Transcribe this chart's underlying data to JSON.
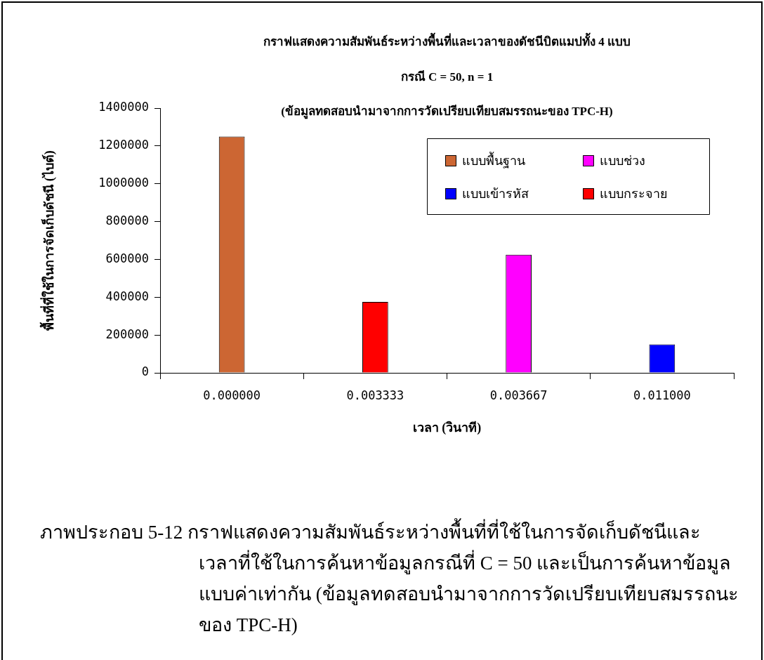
{
  "chart_data": {
    "type": "bar",
    "title": "กราฟแสดงความสัมพันธ์ระหว่างพื้นที่และเวลาของดัชนีบิตแมปทั้ง 4 แบบ",
    "subtitle": "กรณี C = 50, n = 1",
    "xlabel": "เวลา (วินาที)",
    "ylabel": "พื้นที่ที่ใช้ในการจัดเก็บดัชนี (ไบต์)",
    "categories": [
      "0.000000",
      "0.003333",
      "0.003667",
      "0.011000"
    ],
    "series": [
      {
        "name": "แบบพื้นฐาน",
        "color": "#cc6633",
        "values": [
          1250000,
          null,
          null,
          null
        ]
      },
      {
        "name": "แบบช่วง",
        "color": "#ff00ff",
        "values": [
          null,
          null,
          625000,
          null
        ]
      },
      {
        "name": "แบบเข้ารหัส",
        "color": "#0000ff",
        "values": [
          null,
          null,
          null,
          150000
        ]
      },
      {
        "name": "แบบกระจาย",
        "color": "#ff0000",
        "values": [
          null,
          375000,
          null,
          null
        ]
      }
    ],
    "ylim": [
      0,
      1400000
    ],
    "yticks": [
      0,
      200000,
      400000,
      600000,
      800000,
      1000000,
      1200000,
      1400000
    ],
    "grid": false,
    "legend": "top right",
    "annotations": [
      "(ข้อมูลทดสอบนำมาจากการวัดเปรียบเทียบสมรรถนะของ TPC-H)",
      "ภาพประกอบ 5-12 กราฟแสดงความสัมพันธ์ระหว่างพื้นที่ที่ใช้ในการจัดเก็บดัชนีและเวลาที่ใช้ในการค้นหาข้อมูลกรณีที่ C = 50 และเป็นการค้นหาข้อมูลแบบค่าเท่ากัน (ข้อมูลทดสอบนำมาจากการวัดเปรียบเทียบสมรรถนะของ TPC-H)"
    ]
  }
}
